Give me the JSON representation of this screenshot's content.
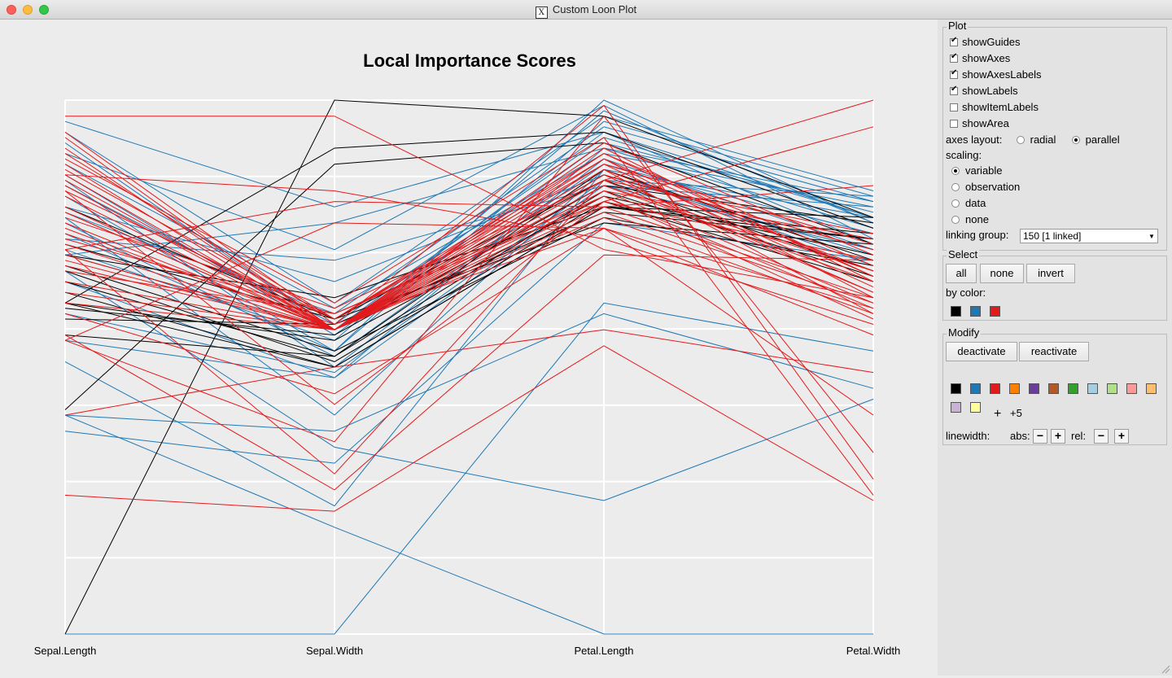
{
  "window": {
    "title": "Custom Loon Plot"
  },
  "plot": {
    "title": "Local Importance Scores",
    "axes": [
      "Sepal.Length",
      "Sepal.Width",
      "Petal.Length",
      "Petal.Width"
    ]
  },
  "chart_data": {
    "type": "parallel-coordinates",
    "title": "Local Importance Scores",
    "variables": [
      "Sepal.Length",
      "Sepal.Width",
      "Petal.Length",
      "Petal.Width"
    ],
    "scale": [
      0,
      1
    ],
    "grid": true,
    "series_colors": {
      "black": "#000000",
      "blue": "#1f78b4",
      "red": "#e31a1c"
    },
    "lines": [
      {
        "color": "black",
        "values": [
          0.0,
          1.0,
          0.97,
          0.78
        ]
      },
      {
        "color": "black",
        "values": [
          0.62,
          0.91,
          0.94,
          0.76
        ]
      },
      {
        "color": "black",
        "values": [
          0.42,
          0.88,
          0.92,
          0.73
        ]
      },
      {
        "color": "black",
        "values": [
          0.61,
          0.56,
          0.84,
          0.77
        ]
      },
      {
        "color": "black",
        "values": [
          0.68,
          0.51,
          0.81,
          0.66
        ]
      },
      {
        "color": "black",
        "values": [
          0.69,
          0.53,
          0.78,
          0.69
        ]
      },
      {
        "color": "black",
        "values": [
          0.71,
          0.57,
          0.86,
          0.72
        ]
      },
      {
        "color": "black",
        "values": [
          0.66,
          0.52,
          0.87,
          0.7
        ]
      },
      {
        "color": "black",
        "values": [
          0.64,
          0.5,
          0.8,
          0.75
        ]
      },
      {
        "color": "black",
        "values": [
          0.62,
          0.55,
          0.82,
          0.71
        ]
      },
      {
        "color": "black",
        "values": [
          0.56,
          0.52,
          0.83,
          0.67
        ]
      },
      {
        "color": "black",
        "values": [
          0.59,
          0.58,
          0.79,
          0.74
        ]
      },
      {
        "color": "black",
        "values": [
          0.73,
          0.59,
          0.85,
          0.68
        ]
      },
      {
        "color": "black",
        "values": [
          0.8,
          0.59,
          0.77,
          0.73
        ]
      },
      {
        "color": "black",
        "values": [
          0.71,
          0.63,
          0.8,
          0.78
        ]
      },
      {
        "color": "black",
        "values": [
          0.62,
          0.5,
          0.8,
          0.74
        ]
      },
      {
        "color": "blue",
        "values": [
          0.0,
          0.0,
          0.62,
          0.53
        ]
      },
      {
        "color": "blue",
        "values": [
          0.41,
          0.2,
          0.0,
          0.0
        ]
      },
      {
        "color": "blue",
        "values": [
          0.68,
          0.35,
          0.25,
          0.44
        ]
      },
      {
        "color": "blue",
        "values": [
          0.82,
          0.53,
          1.0,
          0.77
        ]
      },
      {
        "color": "blue",
        "values": [
          0.94,
          0.62,
          0.97,
          0.83
        ]
      },
      {
        "color": "blue",
        "values": [
          0.86,
          0.56,
          0.92,
          0.79
        ]
      },
      {
        "color": "blue",
        "values": [
          0.79,
          0.6,
          0.95,
          0.81
        ]
      },
      {
        "color": "blue",
        "values": [
          0.9,
          0.72,
          0.99,
          0.74
        ]
      },
      {
        "color": "blue",
        "values": [
          0.75,
          0.53,
          0.96,
          0.82
        ]
      },
      {
        "color": "blue",
        "values": [
          0.84,
          0.58,
          0.93,
          0.78
        ]
      },
      {
        "color": "blue",
        "values": [
          0.77,
          0.52,
          0.88,
          0.75
        ]
      },
      {
        "color": "blue",
        "values": [
          0.66,
          0.48,
          0.91,
          0.76
        ]
      },
      {
        "color": "blue",
        "values": [
          0.72,
          0.55,
          0.98,
          0.77
        ]
      },
      {
        "color": "blue",
        "values": [
          0.88,
          0.61,
          0.9,
          0.8
        ]
      },
      {
        "color": "blue",
        "values": [
          0.8,
          0.66,
          0.86,
          0.71
        ]
      },
      {
        "color": "blue",
        "values": [
          0.92,
          0.57,
          0.94,
          0.73
        ]
      },
      {
        "color": "blue",
        "values": [
          0.85,
          0.5,
          0.89,
          0.72
        ]
      },
      {
        "color": "blue",
        "values": [
          0.78,
          0.41,
          0.87,
          0.69
        ]
      },
      {
        "color": "blue",
        "values": [
          0.6,
          0.49,
          0.85,
          0.82
        ]
      },
      {
        "color": "blue",
        "values": [
          0.55,
          0.48,
          0.84,
          0.8
        ]
      },
      {
        "color": "blue",
        "values": [
          0.51,
          0.24,
          0.87,
          0.78
        ]
      },
      {
        "color": "blue",
        "values": [
          0.41,
          0.38,
          0.6,
          0.46
        ]
      },
      {
        "color": "blue",
        "values": [
          0.38,
          0.32,
          0.77,
          0.7
        ]
      },
      {
        "color": "blue",
        "values": [
          0.74,
          0.7,
          0.84,
          0.72
        ]
      },
      {
        "color": "blue",
        "values": [
          0.71,
          0.77,
          0.91,
          0.81
        ]
      },
      {
        "color": "blue",
        "values": [
          0.96,
          0.8,
          0.94,
          0.78
        ]
      },
      {
        "color": "red",
        "values": [
          0.26,
          0.23,
          0.54,
          0.25
        ]
      },
      {
        "color": "red",
        "values": [
          0.55,
          0.36,
          0.97,
          0.34
        ]
      },
      {
        "color": "red",
        "values": [
          0.41,
          0.5,
          0.57,
          0.49
        ]
      },
      {
        "color": "red",
        "values": [
          0.94,
          0.58,
          0.99,
          0.29
        ]
      },
      {
        "color": "red",
        "values": [
          0.89,
          0.62,
          0.93,
          0.26
        ]
      },
      {
        "color": "red",
        "values": [
          0.72,
          0.3,
          0.85,
          1.0
        ]
      },
      {
        "color": "red",
        "values": [
          0.83,
          0.43,
          0.81,
          0.95
        ]
      },
      {
        "color": "red",
        "values": [
          0.97,
          0.97,
          0.72,
          0.63
        ]
      },
      {
        "color": "red",
        "values": [
          0.75,
          0.58,
          0.76,
          0.61
        ]
      },
      {
        "color": "red",
        "values": [
          0.79,
          0.57,
          0.81,
          0.7
        ]
      },
      {
        "color": "red",
        "values": [
          0.7,
          0.57,
          0.85,
          0.64
        ]
      },
      {
        "color": "red",
        "values": [
          0.66,
          0.57,
          0.83,
          0.62
        ]
      },
      {
        "color": "red",
        "values": [
          0.86,
          0.57,
          0.87,
          0.68
        ]
      },
      {
        "color": "red",
        "values": [
          0.8,
          0.57,
          0.84,
          0.66
        ]
      },
      {
        "color": "red",
        "values": [
          0.73,
          0.57,
          0.86,
          0.72
        ]
      },
      {
        "color": "red",
        "values": [
          0.84,
          0.57,
          0.89,
          0.67
        ]
      },
      {
        "color": "red",
        "values": [
          0.77,
          0.57,
          0.78,
          0.6
        ]
      },
      {
        "color": "red",
        "values": [
          0.91,
          0.57,
          0.9,
          0.69
        ]
      },
      {
        "color": "red",
        "values": [
          0.69,
          0.57,
          0.82,
          0.59
        ]
      },
      {
        "color": "red",
        "values": [
          0.82,
          0.57,
          0.88,
          0.65
        ]
      },
      {
        "color": "red",
        "values": [
          0.62,
          0.57,
          0.8,
          0.63
        ]
      },
      {
        "color": "red",
        "values": [
          0.88,
          0.57,
          0.92,
          0.71
        ]
      },
      {
        "color": "red",
        "values": [
          0.76,
          0.57,
          0.83,
          0.74
        ]
      },
      {
        "color": "red",
        "values": [
          0.85,
          0.57,
          0.87,
          0.6
        ]
      },
      {
        "color": "red",
        "values": [
          0.93,
          0.57,
          0.91,
          0.66
        ]
      },
      {
        "color": "red",
        "values": [
          0.64,
          0.57,
          0.79,
          0.62
        ]
      },
      {
        "color": "red",
        "values": [
          0.71,
          0.57,
          0.84,
          0.68
        ]
      },
      {
        "color": "red",
        "values": [
          0.79,
          0.57,
          0.86,
          0.64
        ]
      },
      {
        "color": "red",
        "values": [
          0.83,
          0.59,
          0.88,
          0.73
        ]
      },
      {
        "color": "red",
        "values": [
          0.74,
          0.6,
          0.82,
          0.61
        ]
      },
      {
        "color": "red",
        "values": [
          0.87,
          0.59,
          0.9,
          0.67
        ]
      },
      {
        "color": "red",
        "values": [
          0.68,
          0.6,
          0.81,
          0.7
        ]
      },
      {
        "color": "red",
        "values": [
          0.9,
          0.59,
          0.89,
          0.63
        ]
      },
      {
        "color": "red",
        "values": [
          0.78,
          0.61,
          0.85,
          0.75
        ]
      },
      {
        "color": "red",
        "values": [
          0.72,
          0.81,
          0.8,
          0.84
        ]
      },
      {
        "color": "red",
        "values": [
          0.55,
          0.77,
          0.76,
          0.56
        ]
      },
      {
        "color": "red",
        "values": [
          0.86,
          0.83,
          0.74,
          0.58
        ]
      },
      {
        "color": "red",
        "values": [
          0.6,
          0.45,
          0.76,
          0.41
        ]
      },
      {
        "color": "red",
        "values": [
          0.56,
          0.27,
          0.71,
          0.7
        ]
      }
    ]
  },
  "panel": {
    "plot": {
      "title": "Plot",
      "showGuides": "showGuides",
      "showAxes": "showAxes",
      "showAxesLabels": "showAxesLabels",
      "showLabels": "showLabels",
      "showItemLabels": "showItemLabels",
      "showArea": "showArea",
      "axes_layout_label": "axes layout:",
      "radial": "radial",
      "parallel": "parallel",
      "scaling_label": "scaling:",
      "variable": "variable",
      "observation": "observation",
      "data": "data",
      "none": "none",
      "linking_group_label": "linking group:",
      "linking_group_value": "150  [1 linked]"
    },
    "select": {
      "title": "Select",
      "all": "all",
      "none": "none",
      "invert": "invert",
      "by_color": "by color:"
    },
    "modify": {
      "title": "Modify",
      "deactivate": "deactivate",
      "reactivate": "reactivate",
      "more": "+5",
      "linewidth": "linewidth:",
      "abs": "abs:",
      "rel": "rel:"
    },
    "colors": [
      "#000000",
      "#1f78b4",
      "#e31a1c",
      "#ff7f00",
      "#6a3d9a",
      "#b15928",
      "#33a02c",
      "#a6cee3",
      "#b2df8a",
      "#fb9a99",
      "#fdbf6f",
      "#cab2d6",
      "#ffff99"
    ],
    "select_colors": [
      "#000000",
      "#1f78b4",
      "#e31a1c"
    ]
  }
}
